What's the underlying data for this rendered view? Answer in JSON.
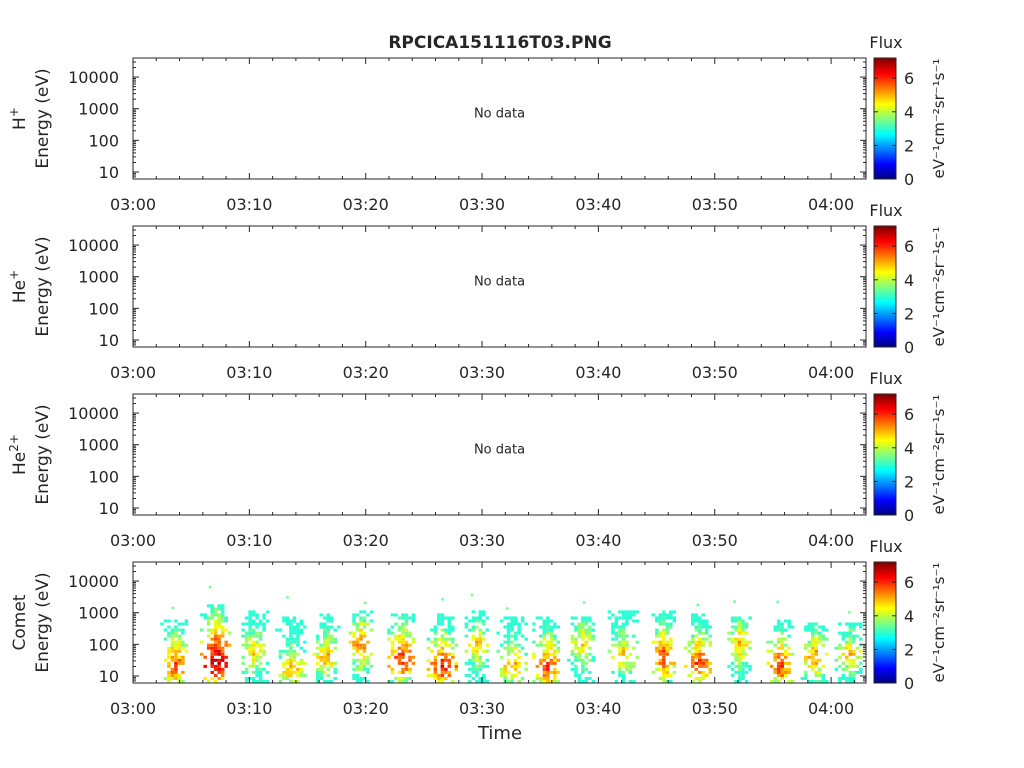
{
  "title": "RPCICA151116T03.PNG",
  "xlabel": "Time",
  "no_data_text": "No data",
  "colorbar": {
    "title": "Flux",
    "unit": "eV⁻¹cm⁻²sr⁻¹s⁻¹",
    "ticks": [
      "0",
      "2",
      "4",
      "6"
    ],
    "range": [
      0,
      7.2
    ],
    "colormap": "jet"
  },
  "x_ticks": [
    "03:00",
    "03:10",
    "03:20",
    "03:30",
    "03:40",
    "03:50",
    "04:00"
  ],
  "y_ticks": [
    "10",
    "100",
    "1000",
    "10000"
  ],
  "chart_data": [
    {
      "type": "heatmap",
      "species": "H",
      "species_sup": "+",
      "ylabel": "Energy (eV)",
      "yscale": "log",
      "ylim": [
        6,
        40000
      ],
      "xlim": [
        "03:00",
        "04:03"
      ],
      "no_data": true
    },
    {
      "type": "heatmap",
      "species": "He",
      "species_sup": "+",
      "ylabel": "Energy (eV)",
      "yscale": "log",
      "ylim": [
        6,
        40000
      ],
      "xlim": [
        "03:00",
        "04:03"
      ],
      "no_data": true
    },
    {
      "type": "heatmap",
      "species": "He",
      "species_sup": "2+",
      "ylabel": "Energy (eV)",
      "yscale": "log",
      "ylim": [
        6,
        40000
      ],
      "xlim": [
        "03:00",
        "04:03"
      ],
      "no_data": true
    },
    {
      "type": "heatmap",
      "species": "Comet",
      "species_sup": "",
      "ylabel": "Energy (eV)",
      "yscale": "log",
      "ylim": [
        6,
        40000
      ],
      "xlim": [
        "03:00",
        "04:03"
      ],
      "no_data": false,
      "bursts": [
        {
          "t": "03:03.5",
          "e_max": 600,
          "peak_e": 20,
          "peak_flux": 6.0
        },
        {
          "t": "03:07.0",
          "e_max": 1500,
          "peak_e": 30,
          "peak_flux": 7.0
        },
        {
          "t": "03:10.3",
          "e_max": 1000,
          "peak_e": 60,
          "peak_flux": 5.0
        },
        {
          "t": "03:13.5",
          "e_max": 700,
          "peak_e": 15,
          "peak_flux": 5.2
        },
        {
          "t": "03:16.5",
          "e_max": 800,
          "peak_e": 40,
          "peak_flux": 5.2
        },
        {
          "t": "03:19.5",
          "e_max": 1000,
          "peak_e": 100,
          "peak_flux": 5.6
        },
        {
          "t": "03:23.0",
          "e_max": 900,
          "peak_e": 35,
          "peak_flux": 6.2
        },
        {
          "t": "03:26.5",
          "e_max": 900,
          "peak_e": 20,
          "peak_flux": 6.2
        },
        {
          "t": "03:29.5",
          "e_max": 1000,
          "peak_e": 100,
          "peak_flux": 5.0
        },
        {
          "t": "03:32.5",
          "e_max": 700,
          "peak_e": 20,
          "peak_flux": 5.3
        },
        {
          "t": "03:35.5",
          "e_max": 700,
          "peak_e": 20,
          "peak_flux": 6.0
        },
        {
          "t": "03:38.5",
          "e_max": 700,
          "peak_e": 100,
          "peak_flux": 5.0
        },
        {
          "t": "03:42.0",
          "e_max": 1000,
          "peak_e": 50,
          "peak_flux": 5.0
        },
        {
          "t": "03:45.5",
          "e_max": 1000,
          "peak_e": 40,
          "peak_flux": 6.0
        },
        {
          "t": "03:48.5",
          "e_max": 900,
          "peak_e": 25,
          "peak_flux": 6.0
        },
        {
          "t": "03:52.0",
          "e_max": 700,
          "peak_e": 100,
          "peak_flux": 5.2
        },
        {
          "t": "03:55.5",
          "e_max": 600,
          "peak_e": 20,
          "peak_flux": 6.0
        },
        {
          "t": "03:58.5",
          "e_max": 400,
          "peak_e": 40,
          "peak_flux": 5.4
        },
        {
          "t": "04:01.5",
          "e_max": 400,
          "peak_e": 50,
          "peak_flux": 5.0
        }
      ]
    }
  ]
}
